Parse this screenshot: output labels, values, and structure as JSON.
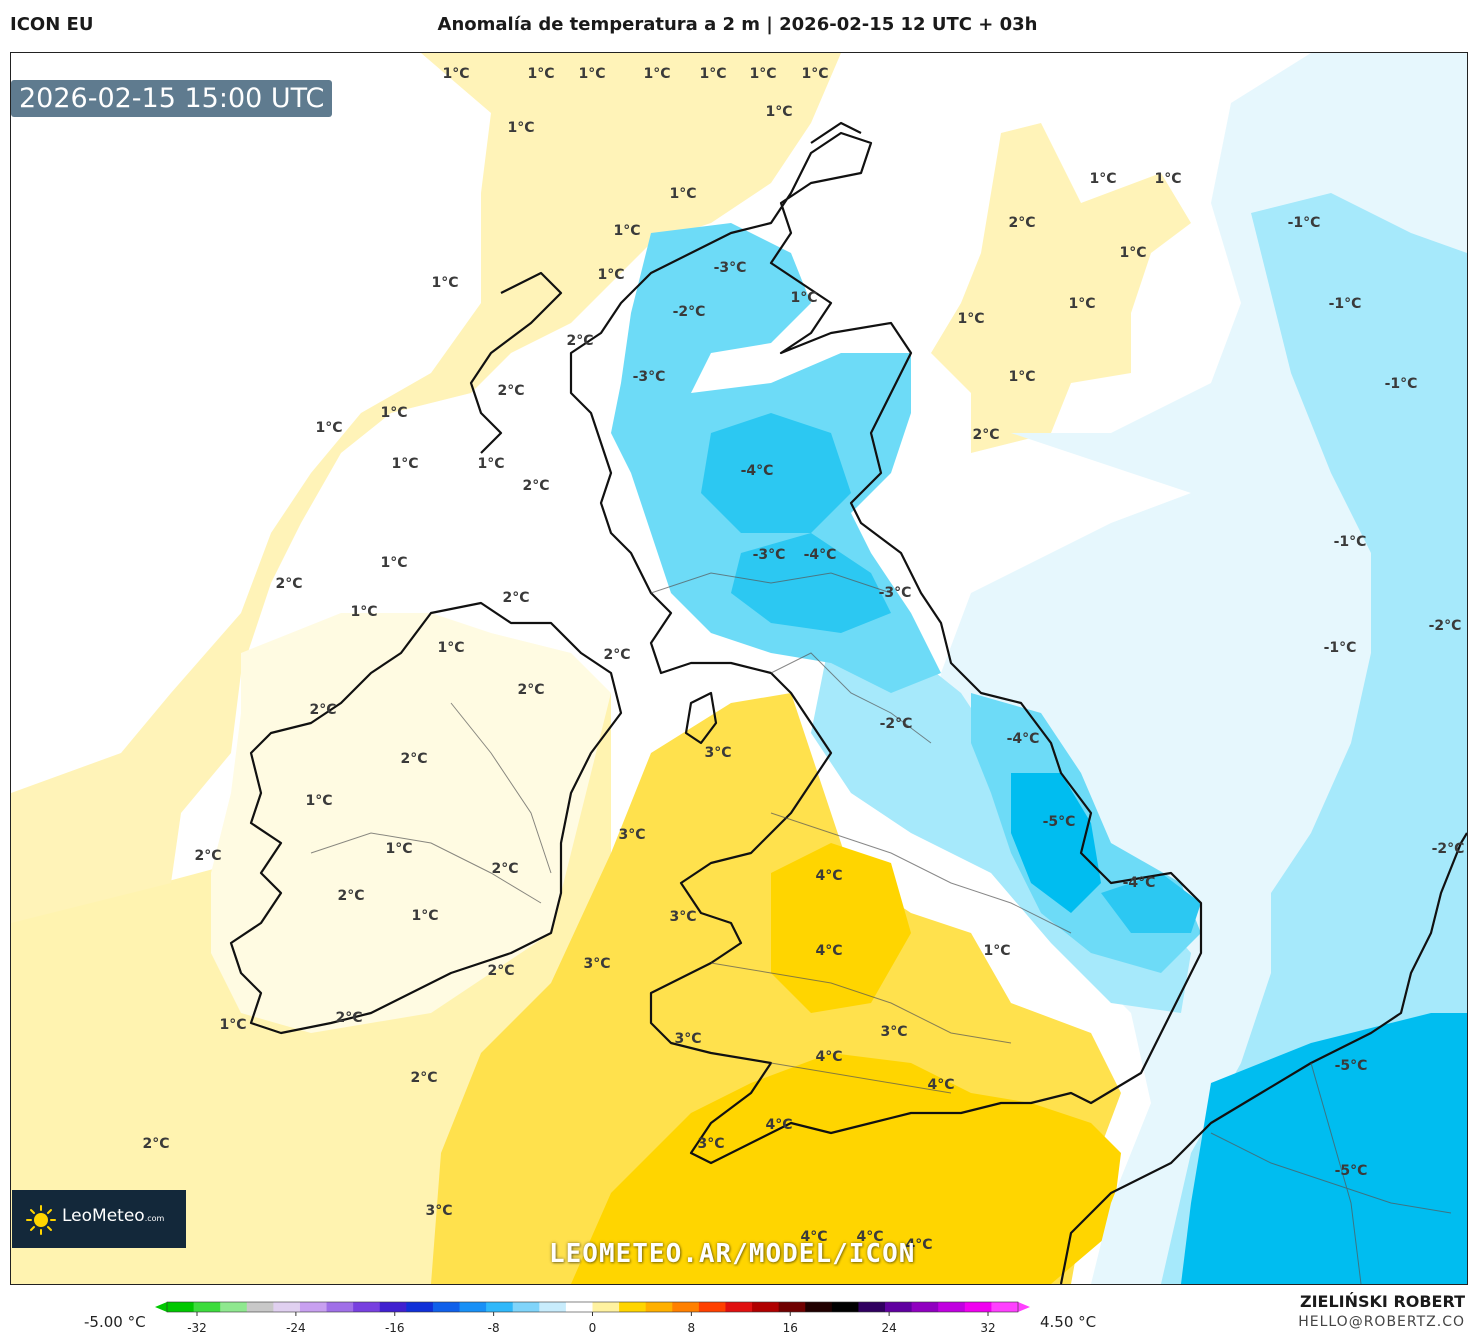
{
  "header": {
    "model": "ICON EU",
    "title": "Anomalía de temperatura a 2 m | 2026-02-15 12 UTC + 03h"
  },
  "map": {
    "valid_time": "2026-02-15 15:00 UTC",
    "website": "LEOMETEO.AR/MODEL/ICON",
    "logo": {
      "name": "LeoMeteo",
      "suffix": ".com"
    },
    "colors": {
      "sea_background": "#ffffff",
      "anomaly_plus1": "#fff3b8",
      "anomaly_plus2": "#fff3b0",
      "anomaly_plus3": "#ffe14d",
      "anomaly_plus4": "#ffd500",
      "anomaly_minus1": "#e6f7fd",
      "anomaly_minus2": "#a6e9fb",
      "anomaly_minus3": "#6ddbf7",
      "anomaly_minus4": "#2cc8f2",
      "anomaly_minus5": "#00bdf0",
      "coastline": "#111111",
      "borders": "#555555"
    },
    "labels": [
      "1°C",
      "1°C",
      "1°C",
      "1°C",
      "1°C",
      "1°C",
      "1°C",
      "1°C",
      "1°C",
      "1°C",
      "1°C",
      "1°C",
      "1°C",
      "1°C",
      "-3°C",
      "-2°C",
      "1°C",
      "1°C",
      "1°C",
      "1°C",
      "1°C",
      "2°C",
      "1°C",
      "-1°C",
      "-1°C",
      "-1°C",
      "-3°C",
      "2°C",
      "1°C",
      "1°C",
      "2°C",
      "1°C",
      "-4°C",
      "2°C",
      "1°C",
      "2°C",
      "-1°C",
      "-1°C",
      "-3°C",
      "-4°C",
      "-3°C",
      "2°C",
      "1°C",
      "1°C",
      "2°C",
      "-2°C",
      "1°C",
      "2°C",
      "2°C",
      "-2°C",
      "-4°C",
      "2°C",
      "3°C",
      "1°C",
      "-5°C",
      "3°C",
      "-2°C",
      "2°C",
      "1°C",
      "2°C",
      "4°C",
      "-4°C",
      "2°C",
      "1°C",
      "3°C",
      "4°C",
      "1°C",
      "2°C",
      "3°C",
      "1°C",
      "2°C",
      "3°C",
      "3°C",
      "4°C",
      "-5°C",
      "2°C",
      "4°C",
      "2°C",
      "2°C",
      "4°C",
      "3°C",
      "-5°C",
      "3°C",
      "4°C",
      "4°C",
      "4°C"
    ]
  },
  "legend": {
    "min_label": "-5.00 °C",
    "max_label": "4.50 °C",
    "ticks": [
      "-32",
      "-24",
      "-16",
      "-8",
      "0",
      "8",
      "16",
      "24",
      "32"
    ],
    "colors": [
      "#00c800",
      "#3ddc3d",
      "#8fe88f",
      "#c8c8c8",
      "#e0d0f0",
      "#c8a0f0",
      "#a070e8",
      "#7840e0",
      "#4020d0",
      "#1030d8",
      "#1060ea",
      "#1890f6",
      "#30b8fa",
      "#80d4fa",
      "#c8ecfc",
      "#ffffff",
      "#fff2a0",
      "#ffd500",
      "#ffb000",
      "#ff8000",
      "#ff4000",
      "#e01010",
      "#b00000",
      "#700000",
      "#200000",
      "#000000",
      "#300060",
      "#6000a0",
      "#9000c0",
      "#c000e0",
      "#f000f0",
      "#ff40ff"
    ]
  },
  "credits": {
    "author": "ZIELIŃSKI ROBERT",
    "email": "HELLO@ROBERTZ.CO"
  }
}
